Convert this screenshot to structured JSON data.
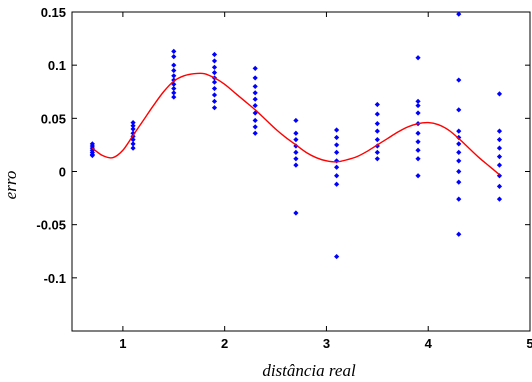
{
  "chart_data": {
    "type": "scatter",
    "title": "",
    "xlabel": "distância real",
    "ylabel": "erro",
    "xlim": [
      0.5,
      5
    ],
    "ylim": [
      -0.15,
      0.15
    ],
    "grid": false,
    "legend": "none",
    "xticks": [
      1,
      2,
      3,
      4,
      5
    ],
    "xtick_labels": [
      "1",
      "2",
      "3",
      "4",
      "5"
    ],
    "yticks": [
      -0.1,
      -0.05,
      0,
      0.05,
      0.1,
      0.15
    ],
    "ytick_labels": [
      "-0.1",
      "-0.05",
      "0",
      "0.05",
      "0.1",
      "0.15"
    ],
    "colors": {
      "points": "#0000ff",
      "fit": "#ff0000",
      "axes": "#000000"
    },
    "series": [
      {
        "kind": "scatter",
        "points": [
          [
            0.7,
            0.026
          ],
          [
            0.7,
            0.024
          ],
          [
            0.7,
            0.022
          ],
          [
            0.7,
            0.02
          ],
          [
            0.7,
            0.018
          ],
          [
            0.7,
            0.016
          ],
          [
            0.7,
            0.015
          ],
          [
            1.1,
            0.046
          ],
          [
            1.1,
            0.043
          ],
          [
            1.1,
            0.04
          ],
          [
            1.1,
            0.036
          ],
          [
            1.1,
            0.033
          ],
          [
            1.1,
            0.03
          ],
          [
            1.1,
            0.026
          ],
          [
            1.1,
            0.022
          ],
          [
            1.5,
            0.113
          ],
          [
            1.5,
            0.108
          ],
          [
            1.5,
            0.1
          ],
          [
            1.5,
            0.095
          ],
          [
            1.5,
            0.09
          ],
          [
            1.5,
            0.086
          ],
          [
            1.5,
            0.082
          ],
          [
            1.5,
            0.078
          ],
          [
            1.5,
            0.074
          ],
          [
            1.5,
            0.07
          ],
          [
            1.9,
            0.11
          ],
          [
            1.9,
            0.104
          ],
          [
            1.9,
            0.098
          ],
          [
            1.9,
            0.093
          ],
          [
            1.9,
            0.088
          ],
          [
            1.9,
            0.084
          ],
          [
            1.9,
            0.078
          ],
          [
            1.9,
            0.072
          ],
          [
            1.9,
            0.066
          ],
          [
            1.9,
            0.06
          ],
          [
            2.3,
            0.097
          ],
          [
            2.3,
            0.088
          ],
          [
            2.3,
            0.08
          ],
          [
            2.3,
            0.074
          ],
          [
            2.3,
            0.068
          ],
          [
            2.3,
            0.062
          ],
          [
            2.3,
            0.055
          ],
          [
            2.3,
            0.048
          ],
          [
            2.3,
            0.042
          ],
          [
            2.3,
            0.036
          ],
          [
            2.7,
            0.048
          ],
          [
            2.7,
            0.036
          ],
          [
            2.7,
            0.03
          ],
          [
            2.7,
            0.024
          ],
          [
            2.7,
            0.018
          ],
          [
            2.7,
            0.012
          ],
          [
            2.7,
            0.006
          ],
          [
            2.7,
            -0.039
          ],
          [
            3.1,
            0.039
          ],
          [
            3.1,
            0.032
          ],
          [
            3.1,
            0.025
          ],
          [
            3.1,
            0.018
          ],
          [
            3.1,
            0.01
          ],
          [
            3.1,
            0.004
          ],
          [
            3.1,
            -0.004
          ],
          [
            3.1,
            -0.012
          ],
          [
            3.1,
            -0.08
          ],
          [
            3.5,
            0.063
          ],
          [
            3.5,
            0.054
          ],
          [
            3.5,
            0.045
          ],
          [
            3.5,
            0.038
          ],
          [
            3.5,
            0.03
          ],
          [
            3.5,
            0.024
          ],
          [
            3.5,
            0.018
          ],
          [
            3.5,
            0.012
          ],
          [
            3.9,
            0.107
          ],
          [
            3.9,
            0.066
          ],
          [
            3.9,
            0.062
          ],
          [
            3.9,
            0.055
          ],
          [
            3.9,
            0.045
          ],
          [
            3.9,
            0.036
          ],
          [
            3.9,
            0.028
          ],
          [
            3.9,
            0.02
          ],
          [
            3.9,
            0.012
          ],
          [
            3.9,
            -0.004
          ],
          [
            4.3,
            0.148
          ],
          [
            4.3,
            0.086
          ],
          [
            4.3,
            0.058
          ],
          [
            4.3,
            0.038
          ],
          [
            4.3,
            0.032
          ],
          [
            4.3,
            0.026
          ],
          [
            4.3,
            0.018
          ],
          [
            4.3,
            0.01
          ],
          [
            4.3,
            0.0
          ],
          [
            4.3,
            -0.01
          ],
          [
            4.3,
            -0.026
          ],
          [
            4.3,
            -0.059
          ],
          [
            4.7,
            0.073
          ],
          [
            4.7,
            0.038
          ],
          [
            4.7,
            0.03
          ],
          [
            4.7,
            0.022
          ],
          [
            4.7,
            0.014
          ],
          [
            4.7,
            0.006
          ],
          [
            4.7,
            -0.004
          ],
          [
            4.7,
            -0.014
          ],
          [
            4.7,
            -0.026
          ]
        ]
      },
      {
        "kind": "line",
        "points": [
          [
            0.7,
            0.022
          ],
          [
            0.8,
            0.015
          ],
          [
            0.9,
            0.013
          ],
          [
            1.0,
            0.02
          ],
          [
            1.1,
            0.034
          ],
          [
            1.2,
            0.048
          ],
          [
            1.3,
            0.062
          ],
          [
            1.4,
            0.075
          ],
          [
            1.5,
            0.085
          ],
          [
            1.6,
            0.09
          ],
          [
            1.7,
            0.092
          ],
          [
            1.8,
            0.092
          ],
          [
            1.9,
            0.088
          ],
          [
            2.0,
            0.082
          ],
          [
            2.1,
            0.074
          ],
          [
            2.2,
            0.066
          ],
          [
            2.3,
            0.058
          ],
          [
            2.4,
            0.049
          ],
          [
            2.5,
            0.04
          ],
          [
            2.6,
            0.032
          ],
          [
            2.7,
            0.025
          ],
          [
            2.8,
            0.018
          ],
          [
            2.9,
            0.013
          ],
          [
            3.0,
            0.01
          ],
          [
            3.1,
            0.009
          ],
          [
            3.2,
            0.011
          ],
          [
            3.3,
            0.014
          ],
          [
            3.4,
            0.019
          ],
          [
            3.5,
            0.025
          ],
          [
            3.6,
            0.031
          ],
          [
            3.7,
            0.037
          ],
          [
            3.8,
            0.042
          ],
          [
            3.9,
            0.045
          ],
          [
            4.0,
            0.046
          ],
          [
            4.1,
            0.044
          ],
          [
            4.2,
            0.039
          ],
          [
            4.3,
            0.031
          ],
          [
            4.4,
            0.022
          ],
          [
            4.5,
            0.013
          ],
          [
            4.6,
            0.005
          ],
          [
            4.7,
            -0.003
          ]
        ]
      }
    ]
  }
}
